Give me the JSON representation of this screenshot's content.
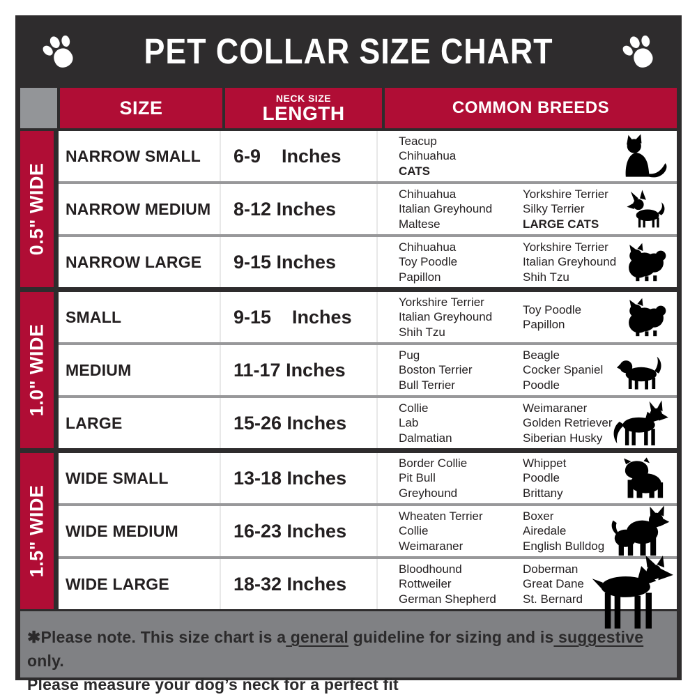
{
  "title": "PET COLLAR SIZE CHART",
  "colors": {
    "dark": "#2E2C2D",
    "red": "#B00D35",
    "corner_gray": "#939598",
    "footer_gray": "#808184",
    "row_divider": "#98989A",
    "light_divider": "#E8E8E8",
    "text": "#231F20",
    "white": "#FFFFFF"
  },
  "icons": {
    "left_paw": "paw-icon",
    "right_paw": "paw-icon"
  },
  "header": {
    "size": "SIZE",
    "neck_size": "NECK SIZE",
    "length": "LENGTH",
    "breeds": "COMMON BREEDS"
  },
  "groups": [
    {
      "width_label": "0.5\" WIDE",
      "rows": [
        {
          "size": "NARROW SMALL",
          "length": "6-9    Inches",
          "breeds_col1": [
            {
              "t": "Teacup"
            },
            {
              "t": "Chihuahua"
            },
            {
              "t": "CATS",
              "b": true
            }
          ],
          "breeds_col2": [],
          "icon": "cat-icon"
        },
        {
          "size": "NARROW MEDIUM",
          "length": "8-12 Inches",
          "breeds_col1": [
            {
              "t": "Chihuahua"
            },
            {
              "t": "Italian Greyhound"
            },
            {
              "t": "Maltese"
            }
          ],
          "breeds_col2": [
            {
              "t": "Yorkshire Terrier"
            },
            {
              "t": "Silky Terrier"
            },
            {
              "t": "LARGE CATS",
              "b": true
            }
          ],
          "icon": "chihuahua-icon"
        },
        {
          "size": "NARROW LARGE",
          "length": "9-15 Inches",
          "breeds_col1": [
            {
              "t": "Chihuahua"
            },
            {
              "t": "Toy Poodle"
            },
            {
              "t": "Papillon"
            }
          ],
          "breeds_col2": [
            {
              "t": "Yorkshire Terrier"
            },
            {
              "t": "Italian Greyhound"
            },
            {
              "t": "Shih Tzu"
            }
          ],
          "icon": "pomeranian-icon"
        }
      ]
    },
    {
      "width_label": "1.0\" WIDE",
      "rows": [
        {
          "size": "SMALL",
          "length": "9-15    Inches",
          "breeds_col1": [
            {
              "t": "Yorkshire Terrier"
            },
            {
              "t": "Italian Greyhound"
            },
            {
              "t": "Shih Tzu"
            }
          ],
          "breeds_col2": [
            {
              "t": "Toy Poodle"
            },
            {
              "t": "Papillon"
            }
          ],
          "icon": "pomeranian-icon"
        },
        {
          "size": "MEDIUM",
          "length": "11-17 Inches",
          "breeds_col1": [
            {
              "t": "Pug"
            },
            {
              "t": "Boston Terrier"
            },
            {
              "t": "Bull Terrier"
            }
          ],
          "breeds_col2": [
            {
              "t": "Beagle"
            },
            {
              "t": "Cocker Spaniel"
            },
            {
              "t": "Poodle"
            }
          ],
          "icon": "beagle-icon"
        },
        {
          "size": "LARGE",
          "length": "15-26 Inches",
          "breeds_col1": [
            {
              "t": "Collie"
            },
            {
              "t": "Lab"
            },
            {
              "t": "Dalmatian"
            }
          ],
          "breeds_col2": [
            {
              "t": "Weimaraner"
            },
            {
              "t": "Golden Retriever"
            },
            {
              "t": "Siberian Husky"
            }
          ],
          "icon": "shepherd-icon"
        }
      ]
    },
    {
      "width_label": "1.5\" WIDE",
      "rows": [
        {
          "size": "WIDE SMALL",
          "length": "13-18 Inches",
          "breeds_col1": [
            {
              "t": "Border Collie"
            },
            {
              "t": "Pit Bull"
            },
            {
              "t": "Greyhound"
            }
          ],
          "breeds_col2": [
            {
              "t": "Whippet"
            },
            {
              "t": "Poodle"
            },
            {
              "t": "Brittany"
            }
          ],
          "icon": "bulldog-icon"
        },
        {
          "size": "WIDE MEDIUM",
          "length": "16-23 Inches",
          "breeds_col1": [
            {
              "t": "Wheaten Terrier"
            },
            {
              "t": "Collie"
            },
            {
              "t": "Weimaraner"
            }
          ],
          "breeds_col2": [
            {
              "t": "Boxer"
            },
            {
              "t": "Airedale"
            },
            {
              "t": "English Bulldog"
            }
          ],
          "icon": "pitbull-icon"
        },
        {
          "size": "WIDE LARGE",
          "length": "18-32 Inches",
          "breeds_col1": [
            {
              "t": "Bloodhound"
            },
            {
              "t": "Rottweiler"
            },
            {
              "t": "German Shepherd"
            }
          ],
          "breeds_col2": [
            {
              "t": "Doberman"
            },
            {
              "t": "Great Dane"
            },
            {
              "t": "St. Bernard"
            }
          ],
          "icon": "doberman-icon"
        }
      ]
    }
  ],
  "note": {
    "line1": [
      {
        "t": "✱Please note. This size chart is a"
      },
      {
        "t": " general",
        "u": true
      },
      {
        "t": " guideline for sizing and is"
      },
      {
        "t": " suggestive",
        "u": true
      },
      {
        "t": " only."
      }
    ],
    "line2": "Please measure your dog’s neck for a perfect fit"
  }
}
